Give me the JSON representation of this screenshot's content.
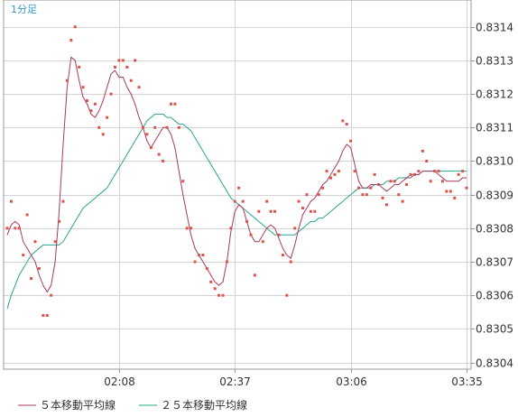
{
  "chart_data": {
    "type": "line",
    "title": "1分足",
    "xlabel": "",
    "ylabel": "",
    "x_ticks": [
      "02:08",
      "02:37",
      "03:06",
      "03:35"
    ],
    "y_ticks": [
      "0.8314",
      "0.8313",
      "0.8312",
      "0.8311",
      "0.8310",
      "0.8309",
      "0.8308",
      "0.8307",
      "0.8306",
      "0.8305",
      "0.8304"
    ],
    "ylim": [
      0.83038,
      0.83148
    ],
    "x_range": [
      0,
      115
    ],
    "x_tick_positions": [
      28,
      57,
      86,
      115
    ],
    "grid": true,
    "legend_position": "bottom-left",
    "colors": {
      "grid": "#d4d4d4",
      "frame": "#999999",
      "points": "#d9534f",
      "ma5": "#a8395f",
      "ma25": "#2aa58a",
      "title": "#3399cc"
    },
    "points": {
      "name": "",
      "x": [
        0,
        1,
        2,
        3,
        4,
        5,
        6,
        7,
        8,
        9,
        10,
        11,
        12,
        13,
        14,
        15,
        16,
        17,
        18,
        19,
        20,
        21,
        22,
        23,
        24,
        25,
        26,
        27,
        28,
        29,
        30,
        31,
        32,
        33,
        34,
        35,
        36,
        37,
        38,
        39,
        40,
        41,
        42,
        43,
        44,
        45,
        46,
        47,
        48,
        49,
        50,
        51,
        52,
        53,
        54,
        55,
        56,
        57,
        58,
        59,
        60,
        61,
        62,
        63,
        64,
        65,
        66,
        67,
        68,
        69,
        70,
        71,
        72,
        73,
        74,
        75,
        76,
        77,
        78,
        79,
        80,
        81,
        82,
        83,
        84,
        85,
        86,
        87,
        88,
        89,
        90,
        91,
        92,
        93,
        94,
        95,
        96,
        97,
        98,
        99,
        100,
        101,
        102,
        103,
        104,
        105,
        106,
        107,
        108,
        109,
        110,
        111,
        112,
        113,
        114,
        115
      ],
      "y": [
        0.8308,
        0.83088,
        0.8308,
        0.8308,
        0.83072,
        0.83084,
        0.83065,
        0.83076,
        0.83068,
        0.83054,
        0.83054,
        0.8306,
        0.83076,
        0.83082,
        0.83088,
        0.83124,
        0.83136,
        0.8314,
        0.83128,
        0.83122,
        0.83118,
        0.83115,
        0.83117,
        0.8311,
        0.83108,
        0.83113,
        0.8312,
        0.83128,
        0.8313,
        0.8313,
        0.83128,
        0.83124,
        0.8313,
        0.83122,
        0.8311,
        0.83108,
        0.83104,
        0.8311,
        0.83102,
        0.831,
        0.8311,
        0.83117,
        0.83117,
        0.8311,
        0.83094,
        0.8308,
        0.8308,
        0.8307,
        0.83072,
        0.83072,
        0.83068,
        0.83064,
        0.83062,
        0.8306,
        0.8306,
        0.8307,
        0.8308,
        0.83088,
        0.83092,
        0.83088,
        0.83082,
        0.83078,
        0.83066,
        0.83085,
        0.83076,
        0.83088,
        0.83085,
        0.83085,
        0.83078,
        0.83072,
        0.8306,
        0.8307,
        0.8308,
        0.83088,
        0.83086,
        0.8309,
        0.83085,
        0.83085,
        0.8309,
        0.83092,
        0.83097,
        0.83095,
        0.83096,
        0.83097,
        0.83112,
        0.83111,
        0.83106,
        0.83097,
        0.83092,
        0.8309,
        0.8309,
        0.83092,
        0.83096,
        0.83093,
        0.83089,
        0.83087,
        0.83094,
        0.83094,
        0.8309,
        0.83088,
        0.83093,
        0.83096,
        0.83096,
        0.83097,
        0.83103,
        0.831,
        0.83094,
        0.83097,
        0.83097,
        0.83094,
        0.83091,
        0.83091,
        0.83089,
        0.83096,
        0.83097,
        0.83092
      ]
    },
    "series": [
      {
        "name": "５本移動平均線",
        "x": [
          0,
          1,
          2,
          3,
          4,
          5,
          6,
          7,
          8,
          9,
          10,
          11,
          12,
          13,
          14,
          15,
          16,
          17,
          18,
          19,
          20,
          21,
          22,
          23,
          24,
          25,
          26,
          27,
          28,
          29,
          30,
          31,
          32,
          33,
          34,
          35,
          36,
          37,
          38,
          39,
          40,
          41,
          42,
          43,
          44,
          45,
          46,
          47,
          48,
          49,
          50,
          51,
          52,
          53,
          54,
          55,
          56,
          57,
          58,
          59,
          60,
          61,
          62,
          63,
          64,
          65,
          66,
          67,
          68,
          69,
          70,
          71,
          72,
          73,
          74,
          75,
          76,
          77,
          78,
          79,
          80,
          81,
          82,
          83,
          84,
          85,
          86,
          87,
          88,
          89,
          90,
          91,
          92,
          93,
          94,
          95,
          96,
          97,
          98,
          99,
          100,
          101,
          102,
          103,
          104,
          105,
          106,
          107,
          108,
          109,
          110,
          111,
          112,
          113,
          114,
          115
        ],
        "values": [
          0.83078,
          0.83081,
          0.83082,
          0.83081,
          0.83076,
          0.83074,
          0.83072,
          0.8307,
          0.83066,
          0.83063,
          0.83061,
          0.83063,
          0.8307,
          0.83085,
          0.83105,
          0.83122,
          0.83131,
          0.8313,
          0.83124,
          0.83119,
          0.83117,
          0.83114,
          0.83113,
          0.83115,
          0.83118,
          0.83122,
          0.83126,
          0.83127,
          0.83125,
          0.83125,
          0.83122,
          0.8312,
          0.83117,
          0.83113,
          0.8311,
          0.83106,
          0.83104,
          0.83106,
          0.83108,
          0.8311,
          0.8311,
          0.83108,
          0.83104,
          0.83097,
          0.8309,
          0.83084,
          0.83078,
          0.83074,
          0.83072,
          0.8307,
          0.83068,
          0.83066,
          0.83064,
          0.83063,
          0.83064,
          0.8307,
          0.83079,
          0.83085,
          0.83087,
          0.83086,
          0.83082,
          0.83078,
          0.83076,
          0.83076,
          0.83078,
          0.8308,
          0.83081,
          0.8308,
          0.83077,
          0.83074,
          0.83072,
          0.83071,
          0.83075,
          0.8308,
          0.83084,
          0.83086,
          0.83088,
          0.83089,
          0.83091,
          0.83093,
          0.83094,
          0.83096,
          0.83098,
          0.831,
          0.83103,
          0.83105,
          0.83104,
          0.83099,
          0.83094,
          0.83092,
          0.83092,
          0.83093,
          0.83093,
          0.83093,
          0.83092,
          0.83091,
          0.83092,
          0.83093,
          0.83093,
          0.83094,
          0.83095,
          0.83095,
          0.83096,
          0.83096,
          0.83097,
          0.83097,
          0.83097,
          0.83097,
          0.83096,
          0.83095,
          0.83094,
          0.83094,
          0.83094,
          0.83094,
          0.83095,
          0.83095
        ]
      },
      {
        "name": "２５本移動平均線",
        "x": [
          0,
          1,
          2,
          3,
          4,
          5,
          6,
          7,
          8,
          9,
          10,
          11,
          12,
          13,
          14,
          15,
          16,
          17,
          18,
          19,
          20,
          21,
          22,
          23,
          24,
          25,
          26,
          27,
          28,
          29,
          30,
          31,
          32,
          33,
          34,
          35,
          36,
          37,
          38,
          39,
          40,
          41,
          42,
          43,
          44,
          45,
          46,
          47,
          48,
          49,
          50,
          51,
          52,
          53,
          54,
          55,
          56,
          57,
          58,
          59,
          60,
          61,
          62,
          63,
          64,
          65,
          66,
          67,
          68,
          69,
          70,
          71,
          72,
          73,
          74,
          75,
          76,
          77,
          78,
          79,
          80,
          81,
          82,
          83,
          84,
          85,
          86,
          87,
          88,
          89,
          90,
          91,
          92,
          93,
          94,
          95,
          96,
          97,
          98,
          99,
          100,
          101,
          102,
          103,
          104,
          105,
          106,
          107,
          108,
          109,
          110,
          111,
          112,
          113,
          114,
          115
        ],
        "values": [
          0.83056,
          0.8306,
          0.83063,
          0.83066,
          0.83068,
          0.8307,
          0.83072,
          0.83073,
          0.83074,
          0.83075,
          0.83075,
          0.83075,
          0.83075,
          0.83075,
          0.83076,
          0.83078,
          0.8308,
          0.83082,
          0.83084,
          0.83086,
          0.83087,
          0.83088,
          0.83089,
          0.8309,
          0.83091,
          0.83092,
          0.83094,
          0.83096,
          0.83098,
          0.831,
          0.83102,
          0.83104,
          0.83106,
          0.83108,
          0.8311,
          0.83112,
          0.83113,
          0.83114,
          0.83114,
          0.83114,
          0.83113,
          0.83113,
          0.83112,
          0.83111,
          0.83111,
          0.8311,
          0.83109,
          0.83107,
          0.83105,
          0.83103,
          0.83101,
          0.83099,
          0.83097,
          0.83095,
          0.83093,
          0.83091,
          0.83089,
          0.83088,
          0.83087,
          0.83086,
          0.83085,
          0.83084,
          0.83083,
          0.83082,
          0.83081,
          0.8308,
          0.83079,
          0.83078,
          0.83078,
          0.83078,
          0.83078,
          0.83078,
          0.83078,
          0.83079,
          0.8308,
          0.83081,
          0.83082,
          0.83082,
          0.83083,
          0.83083,
          0.83084,
          0.83085,
          0.83086,
          0.83087,
          0.83088,
          0.83089,
          0.8309,
          0.83091,
          0.83092,
          0.83092,
          0.83092,
          0.83092,
          0.83093,
          0.83093,
          0.83093,
          0.83094,
          0.83094,
          0.83094,
          0.83095,
          0.83095,
          0.83095,
          0.83096,
          0.83096,
          0.83096,
          0.83097,
          0.83097,
          0.83097,
          0.83097,
          0.83097,
          0.83097,
          0.83097,
          0.83097,
          0.83097,
          0.83097,
          0.83097,
          0.83097
        ]
      }
    ]
  }
}
